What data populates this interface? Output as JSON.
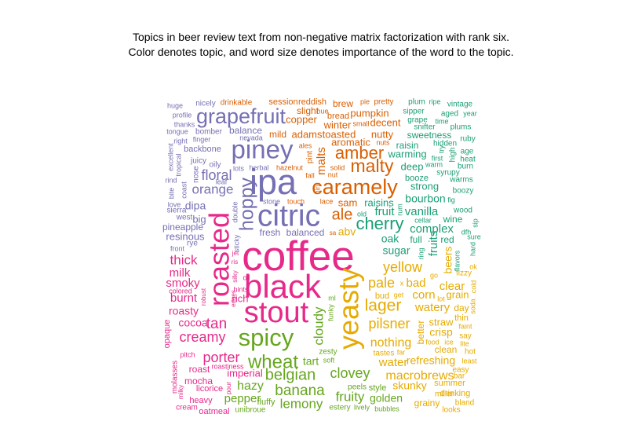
{
  "chart_data": {
    "type": "wordcloud",
    "title_lines": [
      "Topics in beer review text from non-negative matrix factorization with rank six.",
      "Color denotes topic, and word size denotes importance of the word to the topic."
    ],
    "topic_colors": [
      "#7570b3",
      "#d95f02",
      "#1b9e77",
      "#e7298a",
      "#66a61e",
      "#e6ab02"
    ],
    "words": [
      {
        "w": "coffee",
        "t": 3,
        "v": 1.0
      },
      {
        "w": "black",
        "t": 3,
        "v": 0.78
      },
      {
        "w": "stout",
        "t": 3,
        "v": 0.7
      },
      {
        "w": "roasted",
        "t": 3,
        "v": 0.66
      },
      {
        "w": "thick",
        "t": 3,
        "v": 0.3
      },
      {
        "w": "milk",
        "t": 3,
        "v": 0.26
      },
      {
        "w": "smoky",
        "t": 3,
        "v": 0.27
      },
      {
        "w": "burnt",
        "t": 3,
        "v": 0.26
      },
      {
        "w": "roasty",
        "t": 3,
        "v": 0.25
      },
      {
        "w": "cocoa",
        "t": 3,
        "v": 0.24
      },
      {
        "w": "tan",
        "t": 3,
        "v": 0.34
      },
      {
        "w": "creamy",
        "t": 3,
        "v": 0.33
      },
      {
        "w": "porter",
        "t": 3,
        "v": 0.33
      },
      {
        "w": "roast",
        "t": 3,
        "v": 0.2
      },
      {
        "w": "imperial",
        "t": 3,
        "v": 0.22
      },
      {
        "w": "mocha",
        "t": 3,
        "v": 0.2
      },
      {
        "w": "licorice",
        "t": 3,
        "v": 0.18
      },
      {
        "w": "heavy",
        "t": 3,
        "v": 0.18
      },
      {
        "w": "cream",
        "t": 3,
        "v": 0.17
      },
      {
        "w": "oatmeal",
        "t": 3,
        "v": 0.18
      },
      {
        "w": "molasses",
        "t": 3,
        "v": 0.17
      },
      {
        "w": "opaque",
        "t": 3,
        "v": 0.18
      },
      {
        "w": "pitch",
        "t": 3,
        "v": 0.15
      },
      {
        "w": "roastiness",
        "t": 3,
        "v": 0.14
      },
      {
        "w": "colored",
        "t": 3,
        "v": 0.15
      },
      {
        "w": "robust",
        "t": 3,
        "v": 0.13
      },
      {
        "w": "rich",
        "t": 3,
        "v": 0.22
      },
      {
        "w": "hints",
        "t": 3,
        "v": 0.15
      },
      {
        "w": "oil",
        "t": 3,
        "v": 0.15
      },
      {
        "w": "silky",
        "t": 3,
        "v": 0.13
      },
      {
        "w": "edges",
        "t": 3,
        "v": 0.13
      },
      {
        "w": "milky",
        "t": 3,
        "v": 0.13
      },
      {
        "w": "pour",
        "t": 3,
        "v": 0.13
      },
      {
        "w": "ris",
        "t": 3,
        "v": 0.13
      },
      {
        "w": "jet",
        "t": 3,
        "v": 0.13
      },
      {
        "w": "piney",
        "t": 0,
        "v": 0.62
      },
      {
        "w": "grapefruit",
        "t": 0,
        "v": 0.5
      },
      {
        "w": "ipa",
        "t": 0,
        "v": 0.84
      },
      {
        "w": "citric",
        "t": 0,
        "v": 0.72
      },
      {
        "w": "hoppy",
        "t": 0,
        "v": 0.46
      },
      {
        "w": "floral",
        "t": 0,
        "v": 0.32
      },
      {
        "w": "orange",
        "t": 0,
        "v": 0.3
      },
      {
        "w": "dipa",
        "t": 0,
        "v": 0.24
      },
      {
        "w": "big",
        "t": 0,
        "v": 0.22
      },
      {
        "w": "pineapple",
        "t": 0,
        "v": 0.2
      },
      {
        "w": "resinous",
        "t": 0,
        "v": 0.22
      },
      {
        "w": "rye",
        "t": 0,
        "v": 0.17
      },
      {
        "w": "sierra",
        "t": 0,
        "v": 0.16
      },
      {
        "w": "west",
        "t": 0,
        "v": 0.16
      },
      {
        "w": "love",
        "t": 0,
        "v": 0.15
      },
      {
        "w": "front",
        "t": 0,
        "v": 0.15
      },
      {
        "w": "bite",
        "t": 0,
        "v": 0.15
      },
      {
        "w": "rind",
        "t": 0,
        "v": 0.15
      },
      {
        "w": "coast",
        "t": 0,
        "v": 0.15
      },
      {
        "w": "tropical",
        "t": 0,
        "v": 0.15
      },
      {
        "w": "excellent",
        "t": 0,
        "v": 0.15
      },
      {
        "w": "juicy",
        "t": 0,
        "v": 0.17
      },
      {
        "w": "oily",
        "t": 0,
        "v": 0.17
      },
      {
        "w": "nose",
        "t": 0,
        "v": 0.16
      },
      {
        "w": "backbone",
        "t": 0,
        "v": 0.18
      },
      {
        "w": "right",
        "t": 0,
        "v": 0.15
      },
      {
        "w": "finger",
        "t": 0,
        "v": 0.15
      },
      {
        "w": "bomber",
        "t": 0,
        "v": 0.16
      },
      {
        "w": "tongue",
        "t": 0,
        "v": 0.15
      },
      {
        "w": "thanks",
        "t": 0,
        "v": 0.15
      },
      {
        "w": "profile",
        "t": 0,
        "v": 0.15
      },
      {
        "w": "huge",
        "t": 0,
        "v": 0.15
      },
      {
        "w": "nicely",
        "t": 0,
        "v": 0.16
      },
      {
        "w": "balance",
        "t": 0,
        "v": 0.2
      },
      {
        "w": "nevada",
        "t": 0,
        "v": 0.14
      },
      {
        "w": "lots",
        "t": 0,
        "v": 0.15
      },
      {
        "w": "leaf",
        "t": 0,
        "v": 0.14
      },
      {
        "w": "double",
        "t": 0,
        "v": 0.14
      },
      {
        "w": "sticky",
        "t": 0,
        "v": 0.14
      },
      {
        "w": "fresh",
        "t": 0,
        "v": 0.2
      },
      {
        "w": "balanced",
        "t": 0,
        "v": 0.2
      },
      {
        "w": "stone",
        "t": 0,
        "v": 0.15
      },
      {
        "w": "herbal",
        "t": 0,
        "v": 0.15
      },
      {
        "w": "caramely",
        "t": 1,
        "v": 0.5
      },
      {
        "w": "amber",
        "t": 1,
        "v": 0.4
      },
      {
        "w": "malty",
        "t": 1,
        "v": 0.41
      },
      {
        "w": "malts",
        "t": 1,
        "v": 0.26
      },
      {
        "w": "ale",
        "t": 1,
        "v": 0.37
      },
      {
        "w": "aromatic",
        "t": 1,
        "v": 0.22
      },
      {
        "w": "adams",
        "t": 1,
        "v": 0.22
      },
      {
        "w": "toasted",
        "t": 1,
        "v": 0.22
      },
      {
        "w": "mild",
        "t": 1,
        "v": 0.2
      },
      {
        "w": "nutty",
        "t": 1,
        "v": 0.22
      },
      {
        "w": "winter",
        "t": 1,
        "v": 0.22
      },
      {
        "w": "decent",
        "t": 1,
        "v": 0.22
      },
      {
        "w": "pumpkin",
        "t": 1,
        "v": 0.22
      },
      {
        "w": "copper",
        "t": 1,
        "v": 0.22
      },
      {
        "w": "slight",
        "t": 1,
        "v": 0.2
      },
      {
        "w": "bread",
        "t": 1,
        "v": 0.18
      },
      {
        "w": "brew",
        "t": 1,
        "v": 0.2
      },
      {
        "w": "session",
        "t": 1,
        "v": 0.19
      },
      {
        "w": "reddish",
        "t": 1,
        "v": 0.18
      },
      {
        "w": "drinkable",
        "t": 1,
        "v": 0.17
      },
      {
        "w": "pretty",
        "t": 1,
        "v": 0.17
      },
      {
        "w": "pie",
        "t": 1,
        "v": 0.14
      },
      {
        "w": "hue",
        "t": 1,
        "v": 0.14
      },
      {
        "w": "small",
        "t": 1,
        "v": 0.14
      },
      {
        "w": "nuts",
        "t": 1,
        "v": 0.14
      },
      {
        "w": "ales",
        "t": 1,
        "v": 0.15
      },
      {
        "w": "pint",
        "t": 1,
        "v": 0.17
      },
      {
        "w": "hazelnut",
        "t": 1,
        "v": 0.15
      },
      {
        "w": "fall",
        "t": 1,
        "v": 0.14
      },
      {
        "w": "solid",
        "t": 1,
        "v": 0.15
      },
      {
        "w": "nut",
        "t": 1,
        "v": 0.14
      },
      {
        "w": "hint",
        "t": 1,
        "v": 0.14
      },
      {
        "w": "sam",
        "t": 1,
        "v": 0.22
      },
      {
        "w": "lace",
        "t": 1,
        "v": 0.14
      },
      {
        "w": "touch",
        "t": 1,
        "v": 0.14
      },
      {
        "w": "sa",
        "t": 1,
        "v": 0.13
      },
      {
        "w": "cherry",
        "t": 2,
        "v": 0.4
      },
      {
        "w": "fruit",
        "t": 2,
        "v": 0.26
      },
      {
        "w": "vanilla",
        "t": 2,
        "v": 0.26
      },
      {
        "w": "raisins",
        "t": 2,
        "v": 0.22
      },
      {
        "w": "fruits",
        "t": 2,
        "v": 0.27
      },
      {
        "w": "oak",
        "t": 2,
        "v": 0.25
      },
      {
        "w": "sugar",
        "t": 2,
        "v": 0.25
      },
      {
        "w": "complex",
        "t": 2,
        "v": 0.26
      },
      {
        "w": "bourbon",
        "t": 2,
        "v": 0.24
      },
      {
        "w": "strong",
        "t": 2,
        "v": 0.22
      },
      {
        "w": "deep",
        "t": 2,
        "v": 0.22
      },
      {
        "w": "warming",
        "t": 2,
        "v": 0.22
      },
      {
        "w": "raisin",
        "t": 2,
        "v": 0.2
      },
      {
        "w": "sweetness",
        "t": 2,
        "v": 0.2
      },
      {
        "w": "snifter",
        "t": 2,
        "v": 0.17
      },
      {
        "w": "grape",
        "t": 2,
        "v": 0.17
      },
      {
        "w": "sipper",
        "t": 2,
        "v": 0.17
      },
      {
        "w": "plum",
        "t": 2,
        "v": 0.17
      },
      {
        "w": "ripe",
        "t": 2,
        "v": 0.14
      },
      {
        "w": "vintage",
        "t": 2,
        "v": 0.16
      },
      {
        "w": "aged",
        "t": 2,
        "v": 0.16
      },
      {
        "w": "year",
        "t": 2,
        "v": 0.15
      },
      {
        "w": "time",
        "t": 2,
        "v": 0.14
      },
      {
        "w": "plums",
        "t": 2,
        "v": 0.17
      },
      {
        "w": "hidden",
        "t": 2,
        "v": 0.17
      },
      {
        "w": "ruby",
        "t": 2,
        "v": 0.16
      },
      {
        "w": "age",
        "t": 2,
        "v": 0.16
      },
      {
        "w": "heat",
        "t": 2,
        "v": 0.16
      },
      {
        "w": "burn",
        "t": 2,
        "v": 0.16
      },
      {
        "w": "warms",
        "t": 2,
        "v": 0.16
      },
      {
        "w": "boozy",
        "t": 2,
        "v": 0.17
      },
      {
        "w": "wood",
        "t": 2,
        "v": 0.17
      },
      {
        "w": "wine",
        "t": 2,
        "v": 0.2
      },
      {
        "w": "sip",
        "t": 2,
        "v": 0.15
      },
      {
        "w": "dfh",
        "t": 2,
        "v": 0.14
      },
      {
        "w": "sure",
        "t": 2,
        "v": 0.14
      },
      {
        "w": "hard",
        "t": 2,
        "v": 0.14
      },
      {
        "w": "flavors",
        "t": 2,
        "v": 0.15
      },
      {
        "w": "red",
        "t": 2,
        "v": 0.2
      },
      {
        "w": "full",
        "t": 2,
        "v": 0.2
      },
      {
        "w": "ring",
        "t": 2,
        "v": 0.14
      },
      {
        "w": "booze",
        "t": 2,
        "v": 0.18
      },
      {
        "w": "syrupy",
        "t": 2,
        "v": 0.17
      },
      {
        "w": "warm",
        "t": 2,
        "v": 0.15
      },
      {
        "w": "first",
        "t": 2,
        "v": 0.15
      },
      {
        "w": "try",
        "t": 2,
        "v": 0.14
      },
      {
        "w": "high",
        "t": 2,
        "v": 0.16
      },
      {
        "w": "rum",
        "t": 2,
        "v": 0.14
      },
      {
        "w": "fig",
        "t": 2,
        "v": 0.14
      },
      {
        "w": "cellar",
        "t": 2,
        "v": 0.14
      },
      {
        "w": "old",
        "t": 2,
        "v": 0.14
      },
      {
        "w": "spicy",
        "t": 4,
        "v": 0.58
      },
      {
        "w": "wheat",
        "t": 4,
        "v": 0.44
      },
      {
        "w": "belgian",
        "t": 4,
        "v": 0.36
      },
      {
        "w": "banana",
        "t": 4,
        "v": 0.34
      },
      {
        "w": "lemony",
        "t": 4,
        "v": 0.3
      },
      {
        "w": "clovey",
        "t": 4,
        "v": 0.32
      },
      {
        "w": "fruity",
        "t": 4,
        "v": 0.3
      },
      {
        "w": "tart",
        "t": 4,
        "v": 0.25
      },
      {
        "w": "hazy",
        "t": 4,
        "v": 0.28
      },
      {
        "w": "pepper",
        "t": 4,
        "v": 0.26
      },
      {
        "w": "cloudy",
        "t": 4,
        "v": 0.3
      },
      {
        "w": "fluffy",
        "t": 4,
        "v": 0.18
      },
      {
        "w": "estery",
        "t": 4,
        "v": 0.17
      },
      {
        "w": "lively",
        "t": 4,
        "v": 0.15
      },
      {
        "w": "bubbles",
        "t": 4,
        "v": 0.15
      },
      {
        "w": "peels",
        "t": 4,
        "v": 0.16
      },
      {
        "w": "style",
        "t": 4,
        "v": 0.19
      },
      {
        "w": "unibroue",
        "t": 4,
        "v": 0.17
      },
      {
        "w": "zesty",
        "t": 4,
        "v": 0.17
      },
      {
        "w": "soft",
        "t": 4,
        "v": 0.14
      },
      {
        "w": "funky",
        "t": 4,
        "v": 0.15
      },
      {
        "w": "ml",
        "t": 4,
        "v": 0.14
      },
      {
        "w": "golden",
        "t": 4,
        "v": 0.25
      },
      {
        "w": "yeasty",
        "t": 5,
        "v": 0.66
      },
      {
        "w": "lager",
        "t": 5,
        "v": 0.38
      },
      {
        "w": "pale",
        "t": 5,
        "v": 0.33
      },
      {
        "w": "yellow",
        "t": 5,
        "v": 0.32
      },
      {
        "w": "pilsner",
        "t": 5,
        "v": 0.33
      },
      {
        "w": "nothing",
        "t": 5,
        "v": 0.28
      },
      {
        "w": "water",
        "t": 5,
        "v": 0.26
      },
      {
        "w": "refreshing",
        "t": 5,
        "v": 0.24
      },
      {
        "w": "macrobrews",
        "t": 5,
        "v": 0.28
      },
      {
        "w": "skunky",
        "t": 5,
        "v": 0.24
      },
      {
        "w": "grainy",
        "t": 5,
        "v": 0.2
      },
      {
        "w": "looks",
        "t": 5,
        "v": 0.16
      },
      {
        "w": "bland",
        "t": 5,
        "v": 0.17
      },
      {
        "w": "miller",
        "t": 5,
        "v": 0.17
      },
      {
        "w": "drinking",
        "t": 5,
        "v": 0.19
      },
      {
        "w": "summer",
        "t": 5,
        "v": 0.18
      },
      {
        "w": "bar",
        "t": 5,
        "v": 0.16
      },
      {
        "w": "easy",
        "t": 5,
        "v": 0.17
      },
      {
        "w": "least",
        "t": 5,
        "v": 0.15
      },
      {
        "w": "clean",
        "t": 5,
        "v": 0.2
      },
      {
        "w": "hot",
        "t": 5,
        "v": 0.16
      },
      {
        "w": "lite",
        "t": 5,
        "v": 0.15
      },
      {
        "w": "food",
        "t": 5,
        "v": 0.15
      },
      {
        "w": "ice",
        "t": 5,
        "v": 0.15
      },
      {
        "w": "say",
        "t": 5,
        "v": 0.17
      },
      {
        "w": "faint",
        "t": 5,
        "v": 0.15
      },
      {
        "w": "thin",
        "t": 5,
        "v": 0.18
      },
      {
        "w": "crisp",
        "t": 5,
        "v": 0.25
      },
      {
        "w": "straw",
        "t": 5,
        "v": 0.22
      },
      {
        "w": "watery",
        "t": 5,
        "v": 0.26
      },
      {
        "w": "day",
        "t": 5,
        "v": 0.2
      },
      {
        "w": "better",
        "t": 5,
        "v": 0.2
      },
      {
        "w": "corn",
        "t": 5,
        "v": 0.26
      },
      {
        "w": "grain",
        "t": 5,
        "v": 0.22
      },
      {
        "w": "lot",
        "t": 5,
        "v": 0.14
      },
      {
        "w": "clear",
        "t": 5,
        "v": 0.26
      },
      {
        "w": "bad",
        "t": 5,
        "v": 0.26
      },
      {
        "w": "bud",
        "t": 5,
        "v": 0.18
      },
      {
        "w": "get",
        "t": 5,
        "v": 0.15
      },
      {
        "w": "beers",
        "t": 5,
        "v": 0.24
      },
      {
        "w": "fizzy",
        "t": 5,
        "v": 0.16
      },
      {
        "w": "soda",
        "t": 5,
        "v": 0.14
      },
      {
        "w": "cold",
        "t": 5,
        "v": 0.15
      },
      {
        "w": "tastes",
        "t": 5,
        "v": 0.16
      },
      {
        "w": "far",
        "t": 5,
        "v": 0.14
      },
      {
        "w": "go",
        "t": 5,
        "v": 0.15
      },
      {
        "w": "ok",
        "t": 5,
        "v": 0.14
      },
      {
        "w": "abv",
        "t": 5,
        "v": 0.24
      },
      {
        "w": "x",
        "t": 5,
        "v": 0.14
      }
    ]
  }
}
